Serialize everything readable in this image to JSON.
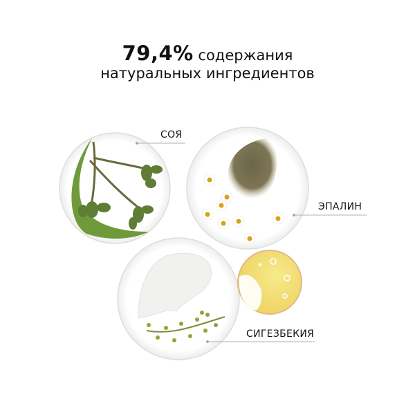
{
  "headline": {
    "percent": "79,4%",
    "line1_rest": "содержания",
    "line2": "натуральных ингредиентов"
  },
  "ingredients": [
    {
      "label": "СОЯ"
    },
    {
      "label": "ЭПАЛИН"
    },
    {
      "label": "СИГЕЗБЕКИЯ"
    }
  ],
  "colors": {
    "text": "#111111",
    "leader_line": "#b0b0b0",
    "leaf_green": "#6f9a3a",
    "powder": "#6e6a4e",
    "oil_yellow": "#f3e27a"
  }
}
